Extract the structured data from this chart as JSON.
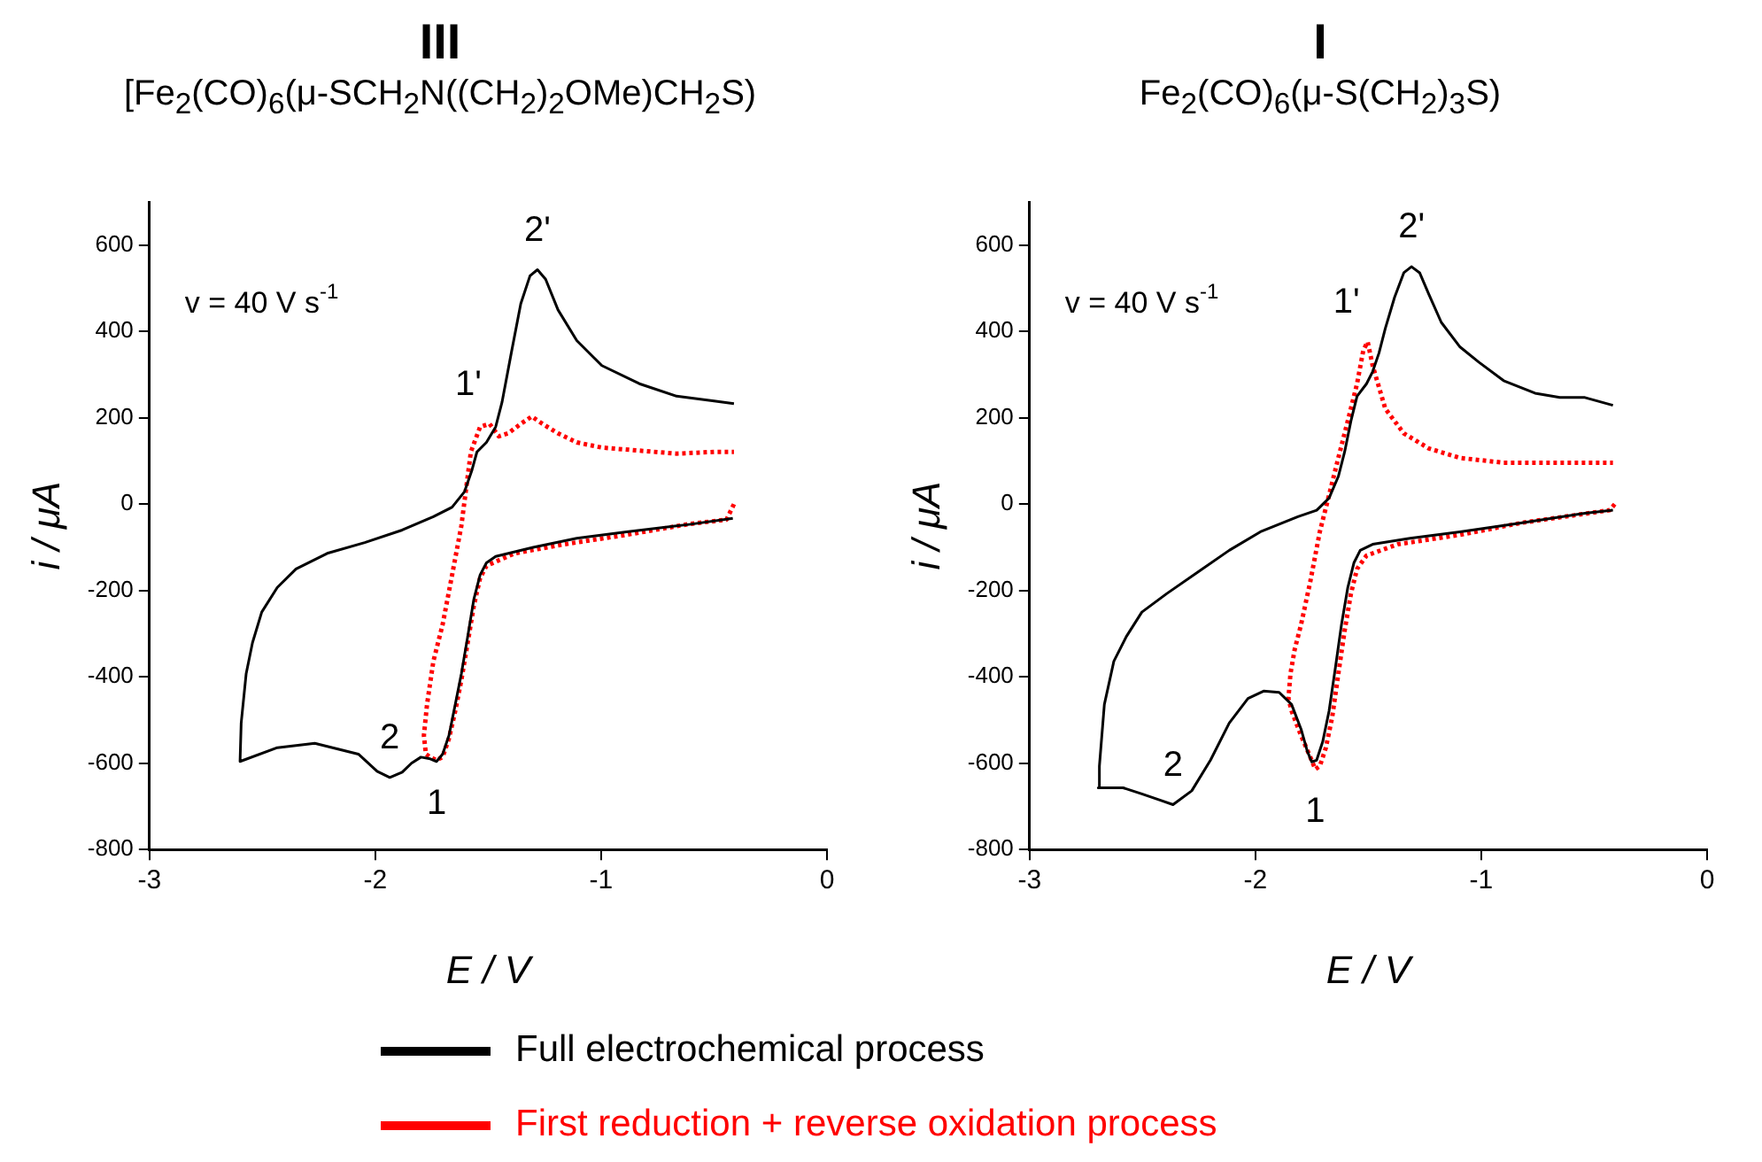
{
  "chart_data": [
    {
      "type": "line",
      "title": "III",
      "subtitle": "[Fe$_{2}$(CO)$_{6}$(μ-SCH$_{2}$N((CH$_{2}$)$_{2}$OMe)CH$_{2}$S)",
      "xlabel": "E / V",
      "ylabel": "i / μA",
      "xlim": [
        -3,
        0
      ],
      "xticks": [
        -3,
        -2,
        -1,
        0
      ],
      "ylim": [
        -800,
        700
      ],
      "yticks": [
        -800,
        -600,
        -400,
        -200,
        0,
        200,
        400,
        600
      ],
      "marker": "none",
      "legend": "bottom",
      "annotations": [
        "v = 40 V s$^{-1}$",
        {
          "text": "2'",
          "x": -1.282,
          "y": 543
        },
        {
          "text": "1'",
          "x": -1.494,
          "y": 186
        },
        {
          "text": "2",
          "x": -1.936,
          "y": -633
        },
        {
          "text": "1",
          "x": -1.729,
          "y": -596
        }
      ],
      "series": [
        {
          "name": "Full electrochemical process",
          "color": "#000000",
          "line_style": "solid",
          "x": [
            -0.417,
            -0.61,
            -0.887,
            -1.108,
            -1.301,
            -1.467,
            -1.508,
            -1.536,
            -1.564,
            -1.591,
            -1.619,
            -1.646,
            -1.674,
            -1.702,
            -1.729,
            -1.757,
            -1.798,
            -1.84,
            -1.881,
            -1.936,
            -1.992,
            -2.075,
            -2.268,
            -2.434,
            -2.599,
            -2.594,
            -2.572,
            -2.544,
            -2.503,
            -2.434,
            -2.351,
            -2.213,
            -2.047,
            -1.881,
            -1.743,
            -1.66,
            -1.605,
            -1.572,
            -1.55,
            -1.508,
            -1.467,
            -1.439,
            -1.398,
            -1.356,
            -1.315,
            -1.282,
            -1.246,
            -1.191,
            -1.108,
            -0.997,
            -0.831,
            -0.666,
            -0.5,
            -0.412
          ],
          "values": [
            -33,
            -47,
            -64,
            -79,
            -100,
            -121,
            -136,
            -164,
            -221,
            -307,
            -393,
            -464,
            -536,
            -579,
            -596,
            -590,
            -586,
            -600,
            -621,
            -633,
            -619,
            -579,
            -554,
            -564,
            -596,
            -507,
            -393,
            -321,
            -250,
            -193,
            -150,
            -114,
            -89,
            -60,
            -29,
            -7,
            29,
            79,
            121,
            143,
            179,
            236,
            350,
            464,
            529,
            543,
            521,
            450,
            379,
            321,
            279,
            250,
            239,
            233
          ]
        },
        {
          "name": "First reduction + reverse oxidation process",
          "color": "#ff0000",
          "line_style": "dotted",
          "x": [
            -0.412,
            -0.445,
            -0.61,
            -0.887,
            -1.163,
            -1.384,
            -1.508,
            -1.536,
            -1.564,
            -1.591,
            -1.619,
            -1.646,
            -1.674,
            -1.702,
            -1.729,
            -1.757,
            -1.776,
            -1.785,
            -1.771,
            -1.743,
            -1.702,
            -1.66,
            -1.619,
            -1.577,
            -1.536,
            -1.494,
            -1.453,
            -1.412,
            -1.356,
            -1.307,
            -1.26,
            -1.191,
            -1.108,
            -0.997,
            -0.831,
            -0.666,
            -0.5,
            -0.412
          ],
          "values": [
            0,
            -36,
            -46,
            -71,
            -93,
            -114,
            -143,
            -171,
            -236,
            -321,
            -407,
            -479,
            -543,
            -586,
            -593,
            -586,
            -579,
            -536,
            -464,
            -364,
            -279,
            -164,
            -50,
            121,
            179,
            186,
            157,
            164,
            186,
            203,
            186,
            164,
            143,
            131,
            124,
            117,
            121,
            121
          ]
        }
      ]
    },
    {
      "type": "line",
      "title": "I",
      "subtitle": "Fe$_{2}$(CO)$_{6}$(μ-S(CH$_{2}$)$_{3}$S)",
      "xlabel": "E / V",
      "ylabel": "i / μA",
      "xlim": [
        -3,
        0
      ],
      "xticks": [
        -3,
        -2,
        -1,
        0
      ],
      "ylim": [
        -800,
        700
      ],
      "yticks": [
        -800,
        -600,
        -400,
        -200,
        0,
        200,
        400,
        600
      ],
      "marker": "none",
      "annotations": [
        "v = 40 V s$^{-1}$",
        {
          "text": "2'",
          "x": -1.309,
          "y": 550
        },
        {
          "text": "1'",
          "x": -1.503,
          "y": 376
        },
        {
          "text": "2",
          "x": -2.365,
          "y": -696
        },
        {
          "text": "1",
          "x": -1.735,
          "y": -614
        }
      ],
      "series": [
        {
          "color": "#000000",
          "line_style": "solid",
          "x": [
            -0.417,
            -0.541,
            -0.818,
            -1.094,
            -1.315,
            -1.481,
            -1.536,
            -1.564,
            -1.591,
            -1.619,
            -1.646,
            -1.674,
            -1.702,
            -1.729,
            -1.751,
            -1.771,
            -1.798,
            -1.84,
            -1.895,
            -1.964,
            -2.033,
            -2.116,
            -2.199,
            -2.282,
            -2.365,
            -2.42,
            -2.503,
            -2.586,
            -2.696,
            -2.691,
            -2.669,
            -2.627,
            -2.572,
            -2.503,
            -2.392,
            -2.254,
            -2.116,
            -1.978,
            -1.812,
            -1.729,
            -1.674,
            -1.633,
            -1.605,
            -1.577,
            -1.55,
            -1.508,
            -1.481,
            -1.453,
            -1.425,
            -1.384,
            -1.343,
            -1.309,
            -1.273,
            -1.232,
            -1.177,
            -1.094,
            -1.011,
            -0.901,
            -0.762,
            -0.652,
            -0.541,
            -0.417
          ],
          "values": [
            -14,
            -21,
            -43,
            -64,
            -79,
            -93,
            -107,
            -136,
            -193,
            -279,
            -379,
            -479,
            -550,
            -593,
            -597,
            -571,
            -521,
            -464,
            -436,
            -433,
            -450,
            -507,
            -593,
            -664,
            -696,
            -686,
            -671,
            -657,
            -657,
            -607,
            -464,
            -364,
            -307,
            -250,
            -207,
            -157,
            -107,
            -64,
            -29,
            -14,
            14,
            64,
            121,
            193,
            250,
            279,
            307,
            350,
            407,
            479,
            536,
            550,
            536,
            486,
            421,
            364,
            329,
            286,
            257,
            247,
            247,
            229
          ]
        },
        {
          "color": "#ff0000",
          "line_style": "dotted",
          "x": [
            -0.409,
            -0.431,
            -0.818,
            -1.094,
            -1.37,
            -1.508,
            -1.55,
            -1.577,
            -1.605,
            -1.633,
            -1.66,
            -1.688,
            -1.715,
            -1.735,
            -1.757,
            -1.798,
            -1.84,
            -1.854,
            -1.845,
            -1.826,
            -1.798,
            -1.757,
            -1.715,
            -1.674,
            -1.633,
            -1.591,
            -1.55,
            -1.522,
            -1.503,
            -1.481,
            -1.425,
            -1.343,
            -1.232,
            -1.094,
            -0.901,
            -0.68,
            -0.417
          ],
          "values": [
            0,
            -14,
            -43,
            -71,
            -93,
            -119,
            -150,
            -207,
            -293,
            -393,
            -493,
            -564,
            -607,
            -614,
            -586,
            -536,
            -479,
            -450,
            -393,
            -336,
            -279,
            -179,
            -64,
            21,
            107,
            193,
            279,
            357,
            376,
            321,
            221,
            164,
            129,
            107,
            96,
            96,
            96
          ]
        }
      ]
    }
  ]
}
